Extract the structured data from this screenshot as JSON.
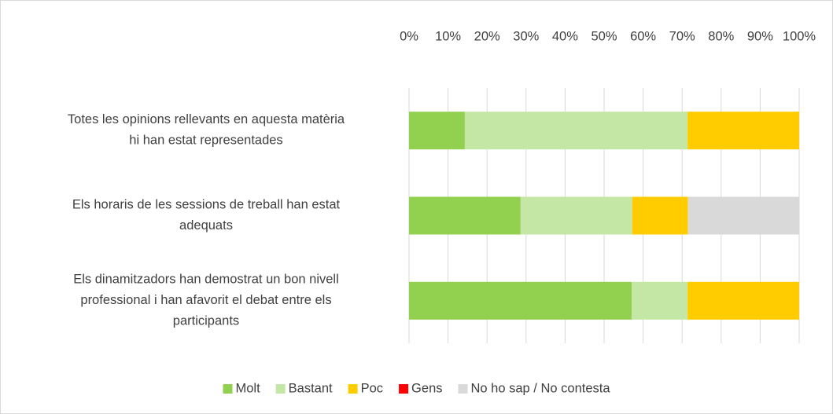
{
  "chart_data": {
    "type": "stacked_bar_horizontal",
    "categories": [
      "Totes les opinions rellevants en aquesta matèria\nhi han estat representades",
      "Els horaris de les sessions de treball han estat\nadequats",
      "Els dinamitzadors han demostrat un bon nivell\nprofessional i han afavorit el debat entre els\nparticipants"
    ],
    "series": [
      {
        "name": "Molt",
        "color": "#92d050",
        "values": [
          14.3,
          28.6,
          57.1
        ]
      },
      {
        "name": "Bastant",
        "color": "#c5e7a5",
        "values": [
          57.1,
          28.6,
          14.3
        ]
      },
      {
        "name": "Poc",
        "color": "#ffcc00",
        "values": [
          28.6,
          14.3,
          28.6
        ]
      },
      {
        "name": "Gens",
        "color": "#ff0000",
        "values": [
          0,
          0,
          0
        ]
      },
      {
        "name": "No ho sap / No contesta",
        "color": "#d9d9d9",
        "values": [
          0,
          28.6,
          0
        ]
      }
    ],
    "xlim": [
      0,
      100
    ],
    "xticks": [
      {
        "value": 0,
        "label": "0%"
      },
      {
        "value": 10,
        "label": "10%"
      },
      {
        "value": 20,
        "label": "20%"
      },
      {
        "value": 30,
        "label": "30%"
      },
      {
        "value": 40,
        "label": "40%"
      },
      {
        "value": 50,
        "label": "50%"
      },
      {
        "value": 60,
        "label": "60%"
      },
      {
        "value": 70,
        "label": "70%"
      },
      {
        "value": 80,
        "label": "80%"
      },
      {
        "value": 90,
        "label": "90%"
      },
      {
        "value": 100,
        "label": "100%"
      }
    ],
    "grid": true,
    "legend": "bottom"
  }
}
